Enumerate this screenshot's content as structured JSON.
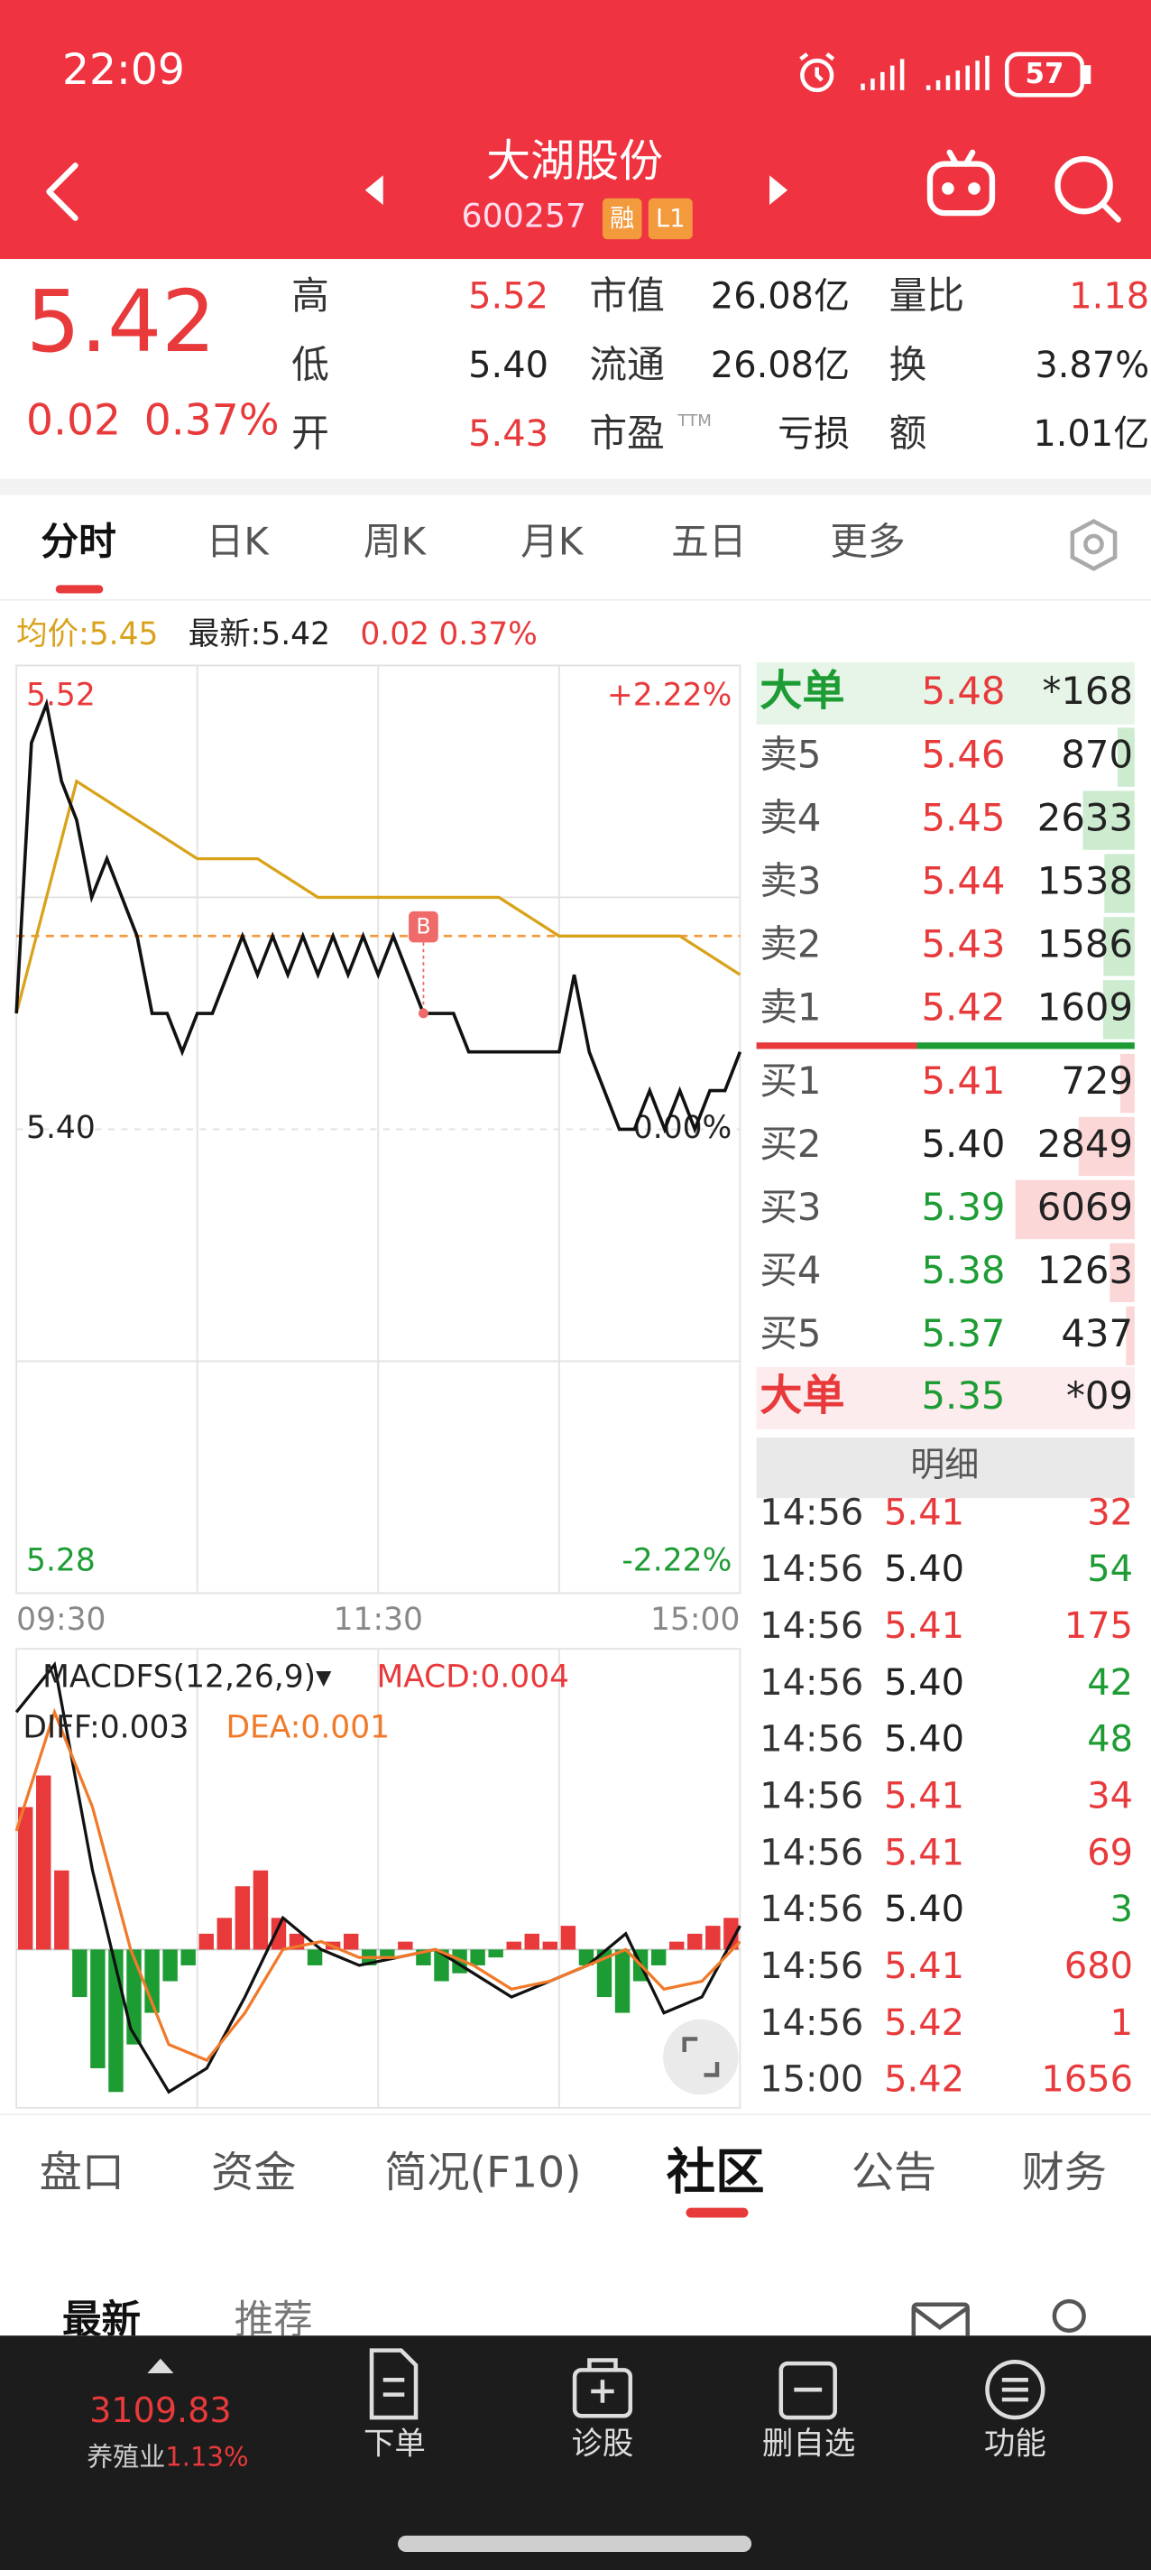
{
  "status_bar": {
    "time": "22:09",
    "battery": "57"
  },
  "header": {
    "name": "大湖股份",
    "code": "600257",
    "badges": [
      "融",
      "L1"
    ]
  },
  "quote": {
    "price": "5.42",
    "change": "0.02",
    "change_pct": "0.37%",
    "ttm": "TTM",
    "fields": [
      [
        "高",
        "5.52",
        "市值",
        "26.08亿",
        "量比",
        "1.18"
      ],
      [
        "低",
        "5.40",
        "流通",
        "26.08亿",
        "换",
        "3.87%"
      ],
      [
        "开",
        "5.43",
        "市盈",
        "亏损",
        "额",
        "1.01亿"
      ]
    ]
  },
  "chart_tabs": [
    "分时",
    "日K",
    "周K",
    "月K",
    "五日",
    "更多"
  ],
  "intraday": {
    "type": "line",
    "avg_label": "均价:5.45",
    "latest_label": "最新:5.42",
    "change": "0.02",
    "change_pct": "0.37%",
    "ylim": [
      5.28,
      5.52
    ],
    "yticks": [
      5.52,
      {
        "value": 5.4,
        "label": "5.40"
      },
      5.28
    ],
    "y2lim": [
      -2.22,
      2.22
    ],
    "y2ticks": [
      {
        "value": 2.22,
        "label": "+2.22%"
      },
      {
        "value": 0,
        "label": "0.00%"
      },
      {
        "value": -2.22,
        "label": "-2.22%"
      }
    ],
    "time_labels": [
      "09:30",
      "11:30",
      "15:00"
    ],
    "ref_line": 5.45,
    "trade_marker": "B",
    "price": {
      "color": "#111111",
      "values": [
        5.43,
        5.5,
        5.51,
        5.49,
        5.48,
        5.46,
        5.47,
        5.46,
        5.45,
        5.43,
        5.43,
        5.42,
        5.43,
        5.43,
        5.44,
        5.45,
        5.44,
        5.45,
        5.44,
        5.45,
        5.44,
        5.45,
        5.44,
        5.45,
        5.44,
        5.45,
        5.44,
        5.43,
        5.43,
        5.43,
        5.42,
        5.42,
        5.42,
        5.42,
        5.42,
        5.42,
        5.42,
        5.44,
        5.42,
        5.41,
        5.4,
        5.4,
        5.41,
        5.4,
        5.41,
        5.4,
        5.41,
        5.41,
        5.42
      ]
    },
    "avg": {
      "color": "#d9a21b",
      "values": [
        5.43,
        5.49,
        5.48,
        5.47,
        5.47,
        5.46,
        5.46,
        5.46,
        5.46,
        5.45,
        5.45,
        5.45,
        5.44
      ]
    }
  },
  "macd": {
    "type": "bar",
    "title": "MACDFS(12,26,9)▾",
    "macd_label": "MACD:0.004",
    "diff_label": "DIFF:0.003",
    "dea_label": "DEA:0.001",
    "ylim": [
      -0.02,
      0.038
    ],
    "hist": [
      0.018,
      0.022,
      0.01,
      -0.006,
      -0.015,
      -0.018,
      -0.012,
      -0.008,
      -0.004,
      -0.002,
      0.002,
      0.004,
      0.008,
      0.01,
      0.004,
      0.002,
      -0.002,
      0.001,
      0.002,
      -0.002,
      -0.001,
      0.001,
      -0.002,
      -0.004,
      -0.003,
      -0.002,
      -0.001,
      0.001,
      0.002,
      0.001,
      0.003,
      -0.002,
      -0.006,
      -0.008,
      -0.004,
      -0.002,
      0.001,
      0.002,
      0.003,
      0.004
    ],
    "diff": {
      "color": "#111111",
      "values": [
        0.03,
        0.036,
        0.01,
        -0.01,
        -0.018,
        -0.015,
        -0.006,
        0.004,
        0.0,
        -0.002,
        -0.001,
        0.0,
        -0.003,
        -0.006,
        -0.004,
        -0.002,
        0.002,
        -0.008,
        -0.006,
        0.003
      ]
    },
    "dea": {
      "color": "#f07a2a",
      "values": [
        0.015,
        0.03,
        0.018,
        0.0,
        -0.012,
        -0.014,
        -0.008,
        0.0,
        0.001,
        -0.001,
        -0.001,
        0.0,
        -0.002,
        -0.005,
        -0.004,
        -0.002,
        0.0,
        -0.005,
        -0.004,
        0.001
      ]
    }
  },
  "order_book": {
    "big_sell": {
      "label": "大单",
      "price": "5.48",
      "volume": "*168"
    },
    "rows": [
      {
        "label": "卖5",
        "price": "5.46",
        "volume": 870
      },
      {
        "label": "卖4",
        "price": "5.45",
        "volume": 2633
      },
      {
        "label": "卖3",
        "price": "5.44",
        "volume": 1538
      },
      {
        "label": "卖2",
        "price": "5.43",
        "volume": 1586
      },
      {
        "label": "卖1",
        "price": "5.42",
        "volume": 1609
      },
      {
        "label": "买1",
        "price": "5.41",
        "volume": 729
      },
      {
        "label": "买2",
        "price": "5.40",
        "volume": 2849
      },
      {
        "label": "买3",
        "price": "5.39",
        "volume": 6069
      },
      {
        "label": "买4",
        "price": "5.38",
        "volume": 1263
      },
      {
        "label": "买5",
        "price": "5.37",
        "volume": 437
      }
    ],
    "big_buy": {
      "label": "大单",
      "price": "5.35",
      "volume": "*09"
    },
    "detail_button": "明细",
    "ticks": [
      {
        "time": "14:56",
        "price": "5.41",
        "volume": 32
      },
      {
        "time": "14:56",
        "price": "5.40",
        "volume": 54
      },
      {
        "time": "14:56",
        "price": "5.41",
        "volume": 175
      },
      {
        "time": "14:56",
        "price": "5.40",
        "volume": 42
      },
      {
        "time": "14:56",
        "price": "5.40",
        "volume": 48
      },
      {
        "time": "14:56",
        "price": "5.41",
        "volume": 34
      },
      {
        "time": "14:56",
        "price": "5.41",
        "volume": 69
      },
      {
        "time": "14:56",
        "price": "5.40",
        "volume": 3
      },
      {
        "time": "14:56",
        "price": "5.41",
        "volume": 680
      },
      {
        "time": "14:56",
        "price": "5.42",
        "volume": 1
      },
      {
        "time": "15:00",
        "price": "5.42",
        "volume": 1656
      }
    ]
  },
  "bottom_tabs": [
    "盘口",
    "资金",
    "简况(F10)",
    "社区",
    "公告",
    "财务"
  ],
  "sub_tabs": [
    "最新",
    "推荐"
  ],
  "dock": {
    "index_value": "3109.83",
    "sector": "养殖业",
    "sector_change": "1.13%",
    "items": [
      "下单",
      "诊股",
      "删自选",
      "功能"
    ]
  }
}
